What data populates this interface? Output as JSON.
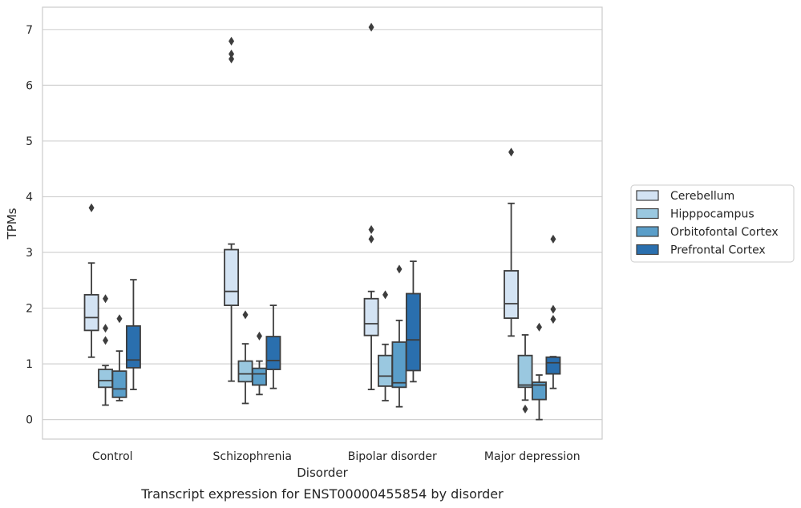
{
  "chart_data": {
    "type": "box",
    "caption": "Transcript expression for ENST00000455854 by disorder",
    "xlabel": "Disorder",
    "ylabel": "TPMs",
    "ylim": [
      -0.35,
      7.4
    ],
    "yticks": [
      0,
      1,
      2,
      3,
      4,
      5,
      6,
      7
    ],
    "grid": true,
    "legend_position": "right",
    "categories": [
      "Control",
      "Schizophrenia",
      "Bipolar disorder",
      "Major depression"
    ],
    "series": [
      {
        "name": "Cerebellum",
        "color": "#d3e3f3",
        "boxes": [
          {
            "whislo": 1.12,
            "q1": 1.6,
            "med": 1.83,
            "q3": 2.24,
            "whishi": 2.81,
            "fliers": [
              3.8
            ]
          },
          {
            "whislo": 0.69,
            "q1": 2.05,
            "med": 2.3,
            "q3": 3.05,
            "whishi": 3.15,
            "fliers": [
              6.47,
              6.56,
              6.79
            ]
          },
          {
            "whislo": 0.54,
            "q1": 1.51,
            "med": 1.72,
            "q3": 2.17,
            "whishi": 2.3,
            "fliers": [
              3.24,
              3.41,
              7.04
            ]
          },
          {
            "whislo": 1.5,
            "q1": 1.82,
            "med": 2.08,
            "q3": 2.67,
            "whishi": 3.88,
            "fliers": [
              4.8
            ]
          }
        ]
      },
      {
        "name": "Hipppocampus",
        "color": "#9ac8e0",
        "boxes": [
          {
            "whislo": 0.26,
            "q1": 0.58,
            "med": 0.7,
            "q3": 0.9,
            "whishi": 0.97,
            "fliers": [
              1.42,
              1.64,
              2.17
            ]
          },
          {
            "whislo": 0.29,
            "q1": 0.68,
            "med": 0.82,
            "q3": 1.05,
            "whishi": 1.36,
            "fliers": [
              1.88
            ]
          },
          {
            "whislo": 0.34,
            "q1": 0.6,
            "med": 0.78,
            "q3": 1.15,
            "whishi": 1.35,
            "fliers": [
              2.24
            ]
          },
          {
            "whislo": 0.35,
            "q1": 0.58,
            "med": 0.62,
            "q3": 1.15,
            "whishi": 1.52,
            "fliers": [
              0.19
            ]
          }
        ]
      },
      {
        "name": "Orbitofontal Cortex",
        "color": "#5a9ec9",
        "boxes": [
          {
            "whislo": 0.34,
            "q1": 0.4,
            "med": 0.55,
            "q3": 0.87,
            "whishi": 1.23,
            "fliers": [
              1.81
            ]
          },
          {
            "whislo": 0.45,
            "q1": 0.62,
            "med": 0.82,
            "q3": 0.92,
            "whishi": 1.05,
            "fliers": [
              1.5
            ]
          },
          {
            "whislo": 0.23,
            "q1": 0.58,
            "med": 0.66,
            "q3": 1.39,
            "whishi": 1.78,
            "fliers": [
              2.7
            ]
          },
          {
            "whislo": 0.0,
            "q1": 0.36,
            "med": 0.62,
            "q3": 0.67,
            "whishi": 0.8,
            "fliers": [
              1.66
            ]
          }
        ]
      },
      {
        "name": "Prefrontal Cortex",
        "color": "#2a6fae",
        "boxes": [
          {
            "whislo": 0.54,
            "q1": 0.93,
            "med": 1.07,
            "q3": 1.68,
            "whishi": 2.51,
            "fliers": []
          },
          {
            "whislo": 0.56,
            "q1": 0.9,
            "med": 1.06,
            "q3": 1.49,
            "whishi": 2.05,
            "fliers": []
          },
          {
            "whislo": 0.68,
            "q1": 0.88,
            "med": 1.43,
            "q3": 2.26,
            "whishi": 2.84,
            "fliers": []
          },
          {
            "whislo": 0.56,
            "q1": 0.82,
            "med": 1.02,
            "q3": 1.12,
            "whishi": 1.13,
            "fliers": [
              1.8,
              1.98,
              3.24
            ]
          }
        ]
      }
    ]
  }
}
